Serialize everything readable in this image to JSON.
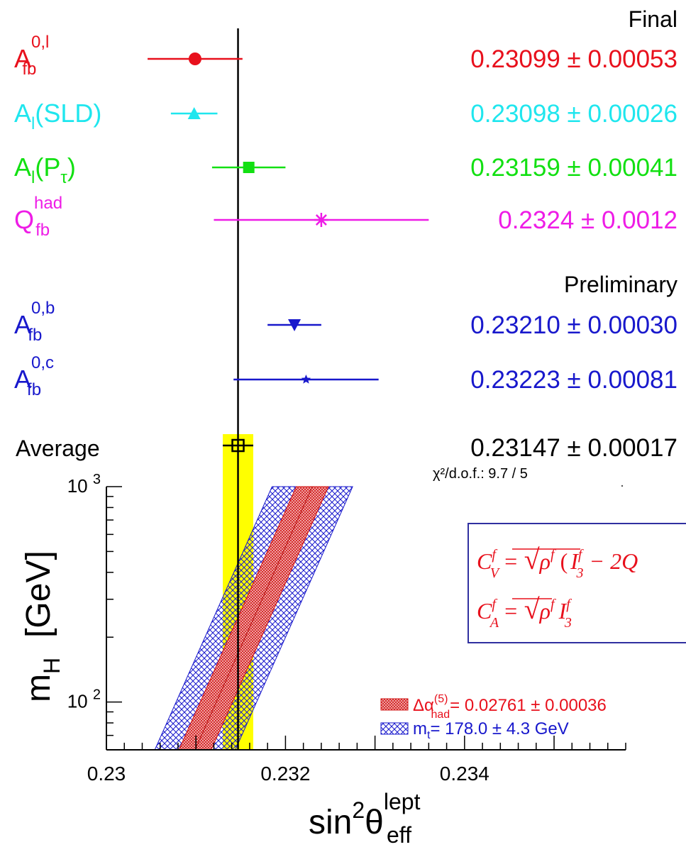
{
  "chart_data": {
    "type": "scatter",
    "section_final": "Final",
    "section_preliminary": "Preliminary",
    "colors": {
      "red": "#e8101c",
      "cyan": "#1fe6ee",
      "green": "#12e012",
      "magenta": "#ee1ce6",
      "blue": "#1818cc",
      "black": "#000000",
      "yellow": "#ffff00",
      "box": "#3030a0"
    },
    "measurements": [
      {
        "base": "A",
        "sub": "fb",
        "sup": "0,l",
        "value": 0.23099,
        "error": 0.00053,
        "text": "0.23099 ± 0.00053",
        "color": "red",
        "marker": "circle"
      },
      {
        "base": "A",
        "sub": "l",
        "tail": "(SLD)",
        "value": 0.23098,
        "error": 0.00026,
        "text": "0.23098 ± 0.00026",
        "color": "cyan",
        "marker": "triangle-up"
      },
      {
        "base": "A",
        "sub": "l",
        "tail": "(P",
        "tailsub": "τ",
        "tailend": ")",
        "value": 0.23159,
        "error": 0.00041,
        "text": "0.23159 ± 0.00041",
        "color": "green",
        "marker": "square"
      },
      {
        "base": "Q",
        "sub": "fb",
        "sup": "had",
        "value": 0.2324,
        "error": 0.0012,
        "text": "0.2324 ± 0.0012",
        "color": "magenta",
        "marker": "star"
      },
      {
        "base": "A",
        "sub": "fb",
        "sup": "0,b",
        "value": 0.2321,
        "error": 0.0003,
        "text": "0.23210 ± 0.00030",
        "color": "blue",
        "marker": "triangle-down"
      },
      {
        "base": "A",
        "sub": "fb",
        "sup": "0,c",
        "value": 0.23223,
        "error": 0.00081,
        "text": "0.23223 ± 0.00081",
        "color": "blue",
        "marker": "small-star"
      }
    ],
    "average": {
      "label": "Average",
      "value": 0.23147,
      "error": 0.00017,
      "text": "0.23147 ± 0.00017",
      "chi2": "χ²/d.o.f.: 9.7 / 5"
    },
    "x_axis": {
      "label": "sin",
      "label_sup": "2",
      "label_theta": "θ",
      "label_sup2": "lept",
      "label_sub2": "eff",
      "range": [
        0.23,
        0.2358
      ],
      "ticks": [
        0.23,
        0.232,
        0.234
      ],
      "tick_labels": [
        "0.23",
        "0.232",
        "0.234"
      ]
    },
    "y_axis": {
      "label": "m",
      "label_sub": "H",
      "label_unit": "[GeV]",
      "scale": "log",
      "range": [
        60,
        1000
      ],
      "major_ticks": [
        100,
        1000
      ],
      "tick_label_base": "10",
      "tick_label_exps": [
        "2",
        "3"
      ]
    },
    "bands": [
      {
        "name": "alpha",
        "text_pre": "Δα",
        "text_sub": "had",
        "text_sup": "(5)",
        "text_post": "= 0.02761 ± 0.00036",
        "color": "red",
        "center": [
          [
            60,
            0.23099
          ],
          [
            1000,
            0.2323
          ]
        ],
        "halfwidth": 0.00018
      },
      {
        "name": "mtop",
        "text_pre": "m",
        "text_sub": "t",
        "text_post": "= 178.0 ± 4.3 GeV",
        "color": "blue",
        "center": [
          [
            60,
            0.23099
          ],
          [
            1000,
            0.2323
          ]
        ],
        "halfwidth": 0.00045
      }
    ],
    "formula": {
      "line1": {
        "C": "C",
        "sup": "f",
        "sub": "V",
        "eq": "= ",
        "rho": "ρ",
        "rhosup": "f",
        "paren": "(",
        "I": "I",
        "Isup": "f",
        "Isub": "3",
        "tail": " − 2Q"
      },
      "line2": {
        "C": "C",
        "sup": "f",
        "sub": "A",
        "eq": "= ",
        "rho": "ρ",
        "rhosup": "f",
        "I": "I",
        "Isup": "f",
        "Isub": "3"
      }
    }
  }
}
